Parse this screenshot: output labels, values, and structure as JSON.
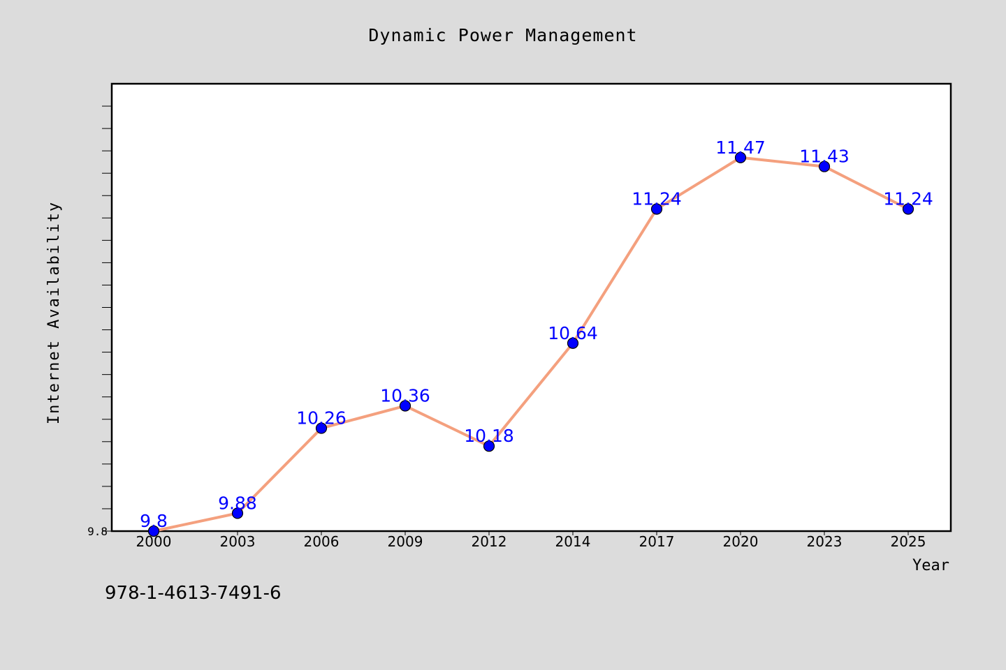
{
  "chart_data": {
    "type": "line",
    "title": "Dynamic Power Management",
    "xlabel": "Year",
    "ylabel": "Internet Availability",
    "categories": [
      "2000",
      "2003",
      "2006",
      "2009",
      "2012",
      "2014",
      "2017",
      "2020",
      "2023",
      "2025"
    ],
    "series": [
      {
        "values": [
          9.8,
          9.88,
          10.26,
          10.36,
          10.18,
          10.64,
          11.24,
          11.47,
          11.43,
          11.24
        ],
        "data_labels": [
          "9.8",
          "9.88",
          "10.26",
          "10.36",
          "10.18",
          "10.64",
          "11.24",
          "11.47",
          "11.43",
          "11.24"
        ]
      }
    ],
    "ytick_labels": [
      {
        "value": 9.8,
        "label": "9.8"
      }
    ],
    "ylim": [
      9.8,
      11.8
    ],
    "grid": false,
    "colors": {
      "line": "#f4a07e",
      "marker": "#0000ff",
      "marker_edge": "#000000",
      "data_label": "#0000ff",
      "plot_bg": "#ffffff",
      "figure_bg": "#dcdcdc"
    }
  },
  "footer": {
    "isbn": "978-1-4613-7491-6"
  }
}
